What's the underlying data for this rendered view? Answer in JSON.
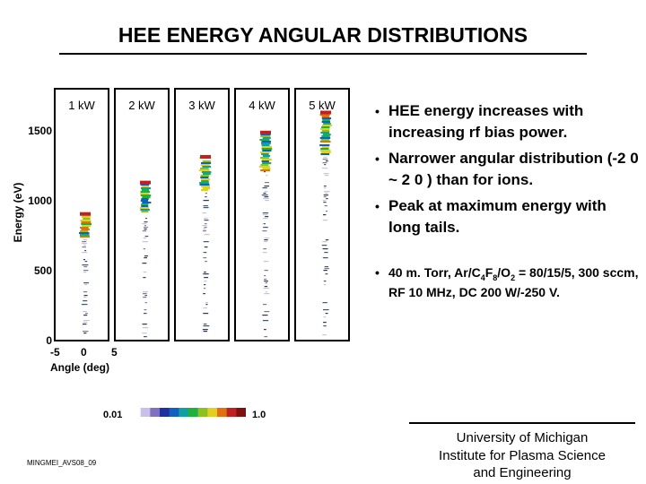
{
  "title": "HEE ENERGY ANGULAR DISTRIBUTIONS",
  "chart_data": {
    "type": "heatmap",
    "ylabel": "Energy (eV)",
    "xlabel": "Angle (deg)",
    "y_ticks": [
      "1500",
      "1000",
      "500",
      "0"
    ],
    "x_ticks": [
      "-5",
      "0",
      "5"
    ],
    "ylim": [
      0,
      1750
    ],
    "panels": [
      {
        "label": "1 kW",
        "peak_energy": 880
      },
      {
        "label": "2 kW",
        "peak_energy": 1100
      },
      {
        "label": "3 kW",
        "peak_energy": 1280
      },
      {
        "label": "4 kW",
        "peak_energy": 1450
      },
      {
        "label": "5 kW",
        "peak_energy": 1590
      }
    ],
    "colorbar": {
      "min_label": "0.01",
      "max_label": "1.0",
      "colors": [
        "#ffffff",
        "#c8c0e8",
        "#8070c0",
        "#2030a0",
        "#1060c0",
        "#10a0a0",
        "#20b040",
        "#90c020",
        "#e0d020",
        "#e07010",
        "#c02020",
        "#801010"
      ]
    }
  },
  "bullets": [
    "HEE energy increases with increasing rf bias power.",
    "Narrower angular distribution (-2 0 ~ 2 0 ) than for ions.",
    "Peak at maximum energy with long tails."
  ],
  "conditions": {
    "prefix": "40 m. Torr, Ar/C",
    "s1": "4",
    "mid1": "F",
    "s2": "8",
    "mid2": "/O",
    "s3": "2",
    "suffix": " = 80/15/5, 300 sccm, RF 10 MHz, DC 200 W/-250 V."
  },
  "credit": [
    "University of Michigan",
    "Institute for Plasma Science",
    "and Engineering"
  ],
  "footer_id": "MINGMEI_AVS08_09"
}
